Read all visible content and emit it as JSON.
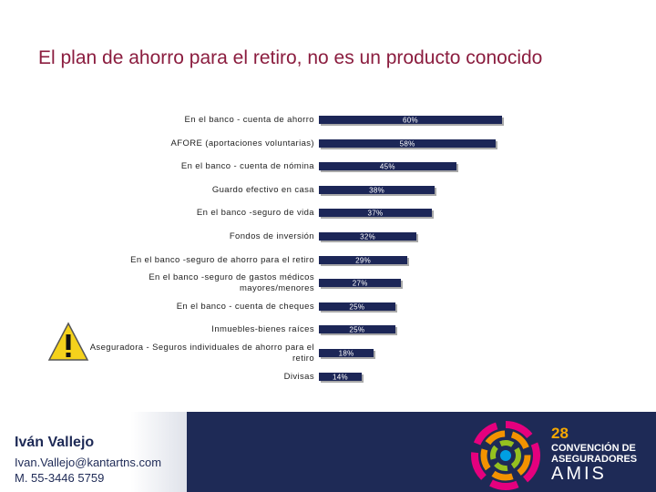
{
  "chart_data": {
    "type": "bar",
    "orientation": "horizontal",
    "title": "El plan de ahorro para el retiro, no es un producto conocido",
    "categories": [
      "En el banco - cuenta de ahorro",
      "AFORE (aportaciones voluntarias)",
      "En el banco - cuenta de nómina",
      "Guardo efectivo en casa",
      "En el banco -seguro de vida",
      "Fondos de inversión",
      "En el banco -seguro de ahorro para el retiro",
      "En el banco -seguro de gastos médicos mayores/menores",
      "En el banco - cuenta de cheques",
      "Inmuebles-bienes raíces",
      "Aseguradora - Seguros individuales de ahorro para el retiro",
      "Divisas"
    ],
    "values": [
      60,
      58,
      45,
      38,
      37,
      32,
      29,
      27,
      25,
      25,
      18,
      14
    ],
    "value_labels": [
      "60%",
      "58%",
      "45%",
      "38%",
      "37%",
      "32%",
      "29%",
      "27%",
      "25%",
      "25%",
      "18%",
      "14%"
    ],
    "color": "#1c2657"
  },
  "footer": {
    "name": "Iván Vallejo",
    "email": "Ivan.Vallejo@kantartns.com",
    "phone": "M. 55-3446 5759"
  },
  "logo": {
    "number": "28",
    "line1": "CONVENCIÓN DE",
    "line2": "ASEGURADORES",
    "line3": "AMIS"
  }
}
